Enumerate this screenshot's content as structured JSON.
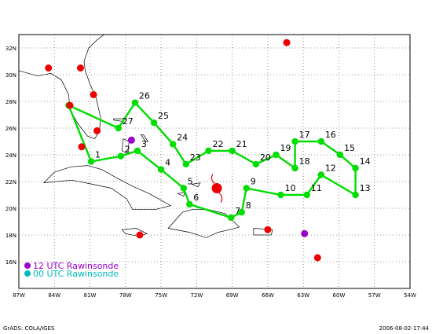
{
  "map": {
    "lon_range": [
      -87,
      -54
    ],
    "lat_range": [
      14,
      33
    ],
    "lon_tick_labels": [
      "87W",
      "84W",
      "81W",
      "78W",
      "75W",
      "72W",
      "69W",
      "66W",
      "63W",
      "60W",
      "57W",
      "54W"
    ],
    "lat_tick_labels": [
      "16N",
      "18N",
      "20N",
      "22N",
      "24N",
      "26N",
      "28N",
      "30N",
      "32N"
    ],
    "lon_ticks": [
      -87,
      -84,
      -81,
      -78,
      -75,
      -72,
      -69,
      -66,
      -63,
      -60,
      -57,
      -54
    ],
    "lat_ticks": [
      16,
      18,
      20,
      22,
      24,
      26,
      28,
      30,
      32
    ],
    "grid": "dotted"
  },
  "colors": {
    "track": "#00dd00",
    "rawinsonde_12utc": "#9900cc",
    "rawinsonde_00utc": "#00bbbb",
    "red_site": "#ee0000",
    "land": "#ffffff",
    "coast": "#000000"
  },
  "track_points": [
    {
      "label": "1",
      "lon": -80.9,
      "lat": 23.5
    },
    {
      "label": "2",
      "lon": -78.4,
      "lat": 23.9
    },
    {
      "label": "3",
      "lon": -77.0,
      "lat": 24.3
    },
    {
      "label": "4",
      "lon": -75.0,
      "lat": 22.9
    },
    {
      "label": "5",
      "lon": -73.1,
      "lat": 21.5
    },
    {
      "label": "6",
      "lon": -72.6,
      "lat": 20.3
    },
    {
      "label": "7",
      "lon": -69.1,
      "lat": 19.3
    },
    {
      "label": "8",
      "lon": -68.2,
      "lat": 19.7
    },
    {
      "label": "9",
      "lon": -67.8,
      "lat": 21.5
    },
    {
      "label": "10",
      "lon": -64.9,
      "lat": 21.0
    },
    {
      "label": "11",
      "lon": -62.7,
      "lat": 21.0
    },
    {
      "label": "12",
      "lon": -61.5,
      "lat": 22.5
    },
    {
      "label": "13",
      "lon": -58.6,
      "lat": 21.0
    },
    {
      "label": "14",
      "lon": -58.6,
      "lat": 23.0
    },
    {
      "label": "15",
      "lon": -59.9,
      "lat": 24.0
    },
    {
      "label": "16",
      "lon": -61.5,
      "lat": 25.0
    },
    {
      "label": "17",
      "lon": -63.7,
      "lat": 25.0
    },
    {
      "label": "18",
      "lon": -63.7,
      "lat": 23.0
    },
    {
      "label": "19",
      "lon": -65.3,
      "lat": 24.0
    },
    {
      "label": "20",
      "lon": -67.0,
      "lat": 23.3
    },
    {
      "label": "21",
      "lon": -69.0,
      "lat": 24.3
    },
    {
      "label": "22",
      "lon": -71.0,
      "lat": 24.3
    },
    {
      "label": "23",
      "lon": -72.9,
      "lat": 23.3
    },
    {
      "label": "24",
      "lon": -74.0,
      "lat": 24.8
    },
    {
      "label": "25",
      "lon": -75.6,
      "lat": 26.4
    },
    {
      "label": "26",
      "lon": -77.2,
      "lat": 27.9
    },
    {
      "label": "27",
      "lon": -78.6,
      "lat": 26.0
    },
    {
      "label": "",
      "lon": -82.8,
      "lat": 27.7
    }
  ],
  "red_sites": [
    {
      "lon": -84.5,
      "lat": 30.5
    },
    {
      "lon": -81.8,
      "lat": 30.5
    },
    {
      "lon": -80.7,
      "lat": 28.5
    },
    {
      "lon": -82.7,
      "lat": 27.7
    },
    {
      "lon": -80.4,
      "lat": 25.8
    },
    {
      "lon": -81.7,
      "lat": 24.6
    },
    {
      "lon": -64.4,
      "lat": 32.4
    },
    {
      "lon": -66.0,
      "lat": 18.4
    },
    {
      "lon": -61.8,
      "lat": 16.3
    },
    {
      "lon": -76.8,
      "lat": 18.0
    }
  ],
  "purple_sites": [
    {
      "lon": -77.5,
      "lat": 25.1
    },
    {
      "lon": -62.9,
      "lat": 18.1
    }
  ],
  "storm_symbol": {
    "lon": -70.3,
    "lat": 21.5
  },
  "legend": {
    "item1": "12 UTC Rawinsonde",
    "item2": "00 UTC Rawinsonde"
  },
  "footer": {
    "left": "GrADS: COLA/IGES",
    "right": "2006-08-02-17:44"
  }
}
